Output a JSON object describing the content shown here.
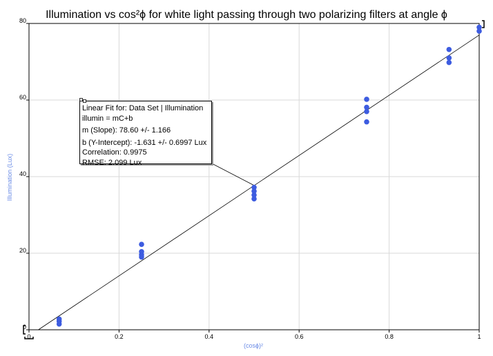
{
  "chart_data": {
    "type": "scatter",
    "title": "Illumination vs cos²ϕ for white light passing through two polarizing filters at angle  ϕ",
    "xlabel": "(cosϕ)²",
    "ylabel": "Illumination (Lux)",
    "xlim": [
      0,
      1
    ],
    "ylim": [
      0,
      80
    ],
    "xticks": [
      "0",
      "0.2",
      "0.4",
      "0.6",
      "0.8",
      "1"
    ],
    "yticks": [
      "0",
      "20",
      "40",
      "60",
      "80"
    ],
    "grid": true,
    "series": [
      {
        "points": [
          [
            0.067,
            1.5
          ],
          [
            0.067,
            2.2
          ],
          [
            0.067,
            2.8
          ],
          [
            0.25,
            19.0
          ],
          [
            0.25,
            19.6
          ],
          [
            0.25,
            20.4
          ],
          [
            0.25,
            22.3
          ],
          [
            0.5,
            34.2
          ],
          [
            0.5,
            35.2
          ],
          [
            0.5,
            36.2
          ],
          [
            0.5,
            37.2
          ],
          [
            0.75,
            54.3
          ],
          [
            0.75,
            57.0
          ],
          [
            0.75,
            58.1
          ],
          [
            0.75,
            60.2
          ],
          [
            0.933,
            69.8
          ],
          [
            0.933,
            71.0
          ],
          [
            0.933,
            73.2
          ],
          [
            1.0,
            78.0
          ],
          [
            1.0,
            79.0
          ]
        ],
        "color": "#3d5ce0"
      }
    ],
    "fit_line": {
      "slope": 78.6,
      "intercept": -1.631,
      "color": "#000000"
    },
    "annotation": {
      "lines": [
        "Linear Fit for: Data Set | Illumination",
        "illumin = mC+b",
        "m (Slope): 78.60 +/- 1.166",
        "b (Y-Intercept): -1.631 +/- 0.6997 Lux",
        "Correlation: 0.9975",
        "RMSE: 2.099 Lux"
      ],
      "anchor": [
        0.5,
        37.7
      ]
    },
    "colors": {
      "axis_label": "#6b8ce6",
      "grid": "#d9d9d9",
      "points": "#3d5ce0"
    }
  }
}
